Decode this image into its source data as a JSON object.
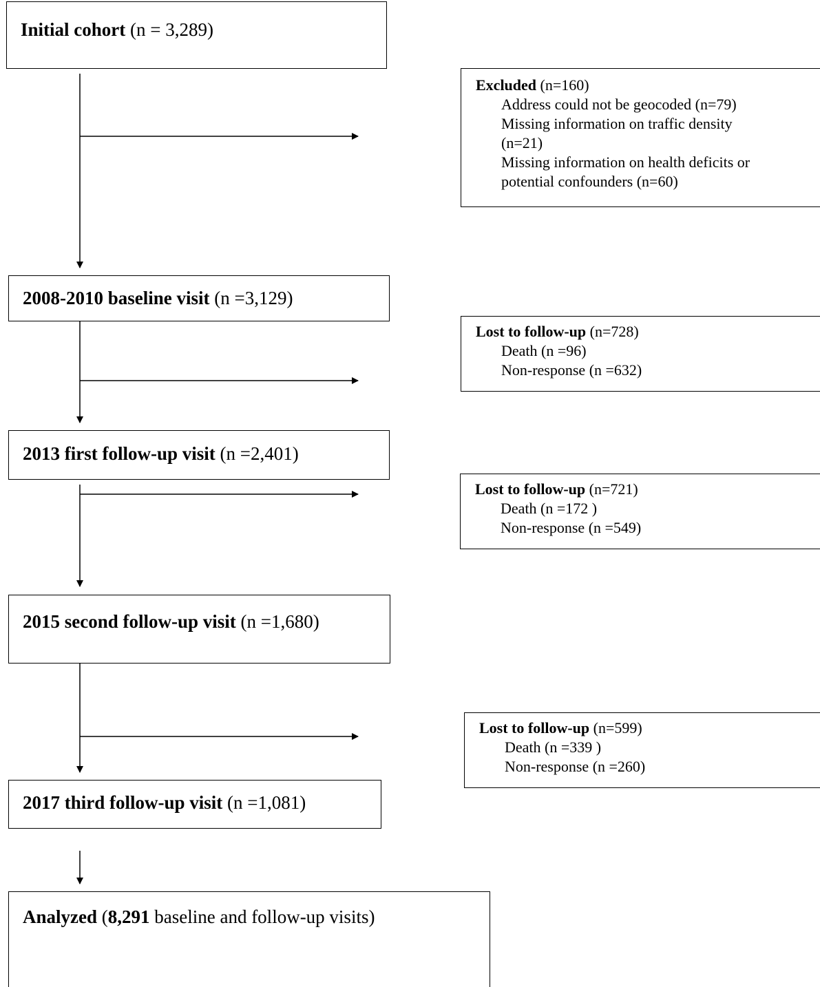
{
  "flowchart": {
    "initial": {
      "label": "Initial cohort",
      "count": " (n = 3,289)"
    },
    "baseline": {
      "label": "2008-2010 baseline visit",
      "count": " (n =3,129)"
    },
    "first_followup": {
      "label": "2013 first follow-up visit",
      "count": " (n =2,401)"
    },
    "second_followup": {
      "label": "2015 second follow-up visit",
      "count": " (n =1,680)"
    },
    "third_followup": {
      "label": "2017 third follow-up visit",
      "count": " (n =1,081)"
    },
    "analyzed": {
      "label": "Analyzed",
      "open": " (",
      "count": "8,291",
      "rest": " baseline and follow-up visits)"
    },
    "excluded": {
      "label": "Excluded",
      "count": " (n=160)",
      "items": [
        "Address could not be geocoded (n=79)",
        "Missing information on traffic density",
        "(n=21)",
        "Missing information on health deficits or",
        "potential confounders (n=60)"
      ]
    },
    "lost1": {
      "label": "Lost to follow-up",
      "count": " (n=728)",
      "items": [
        "Death (n =96)",
        "Non-response (n =632)"
      ]
    },
    "lost2": {
      "label": "Lost to follow-up",
      "count": " (n=721)",
      "items": [
        "Death (n =172 )",
        "Non-response (n =549)"
      ]
    },
    "lost3": {
      "label": "Lost to follow-up",
      "count": " (n=599)",
      "items": [
        "Death (n =339 )",
        "Non-response (n =260)"
      ]
    }
  }
}
